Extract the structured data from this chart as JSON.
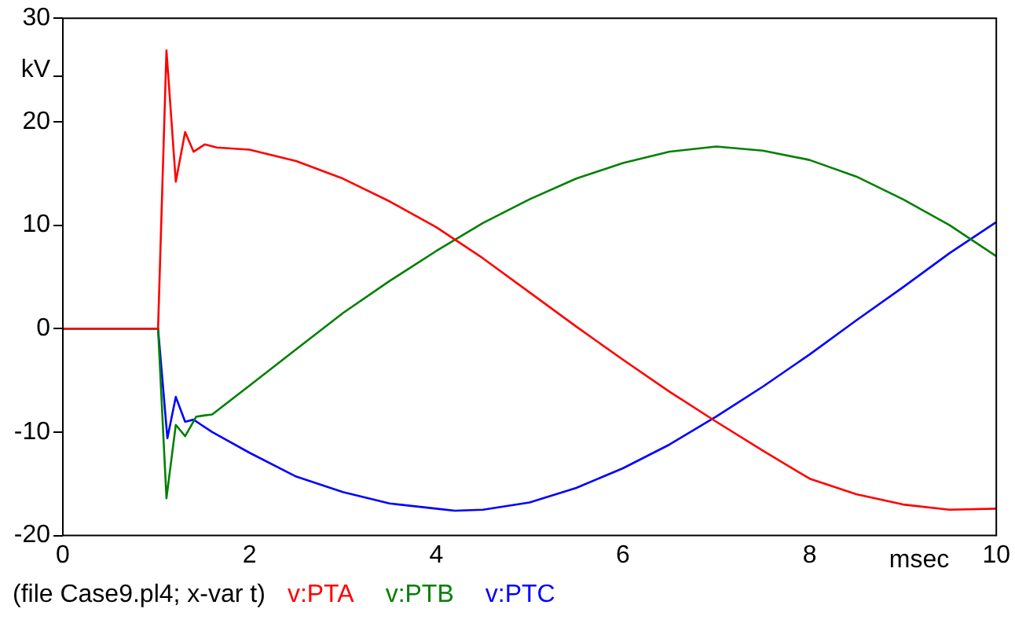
{
  "chart_data": {
    "type": "line",
    "xlabel": "msec",
    "ylabel": "kV",
    "annotations": [
      "(file Case9.pl4; x-var t)"
    ],
    "xlim": [
      0,
      10
    ],
    "ylim": [
      -20,
      30
    ],
    "xticks": [
      0,
      2,
      4,
      6,
      8,
      10
    ],
    "yticks": [
      -20,
      -10,
      0,
      10,
      20,
      30
    ],
    "grid": false,
    "legend": "bottom",
    "marker": "none",
    "line_style": "solid",
    "series": [
      {
        "name": "v:PTA",
        "color": "#ff0000",
        "x": [
          0,
          1.02,
          1.11,
          1.21,
          1.31,
          1.4,
          1.52,
          1.65,
          2,
          2.5,
          3,
          3.5,
          4,
          4.5,
          5,
          5.5,
          6,
          6.5,
          7,
          7.5,
          8,
          8.5,
          9,
          9.5,
          10
        ],
        "values": [
          0,
          0,
          26.9,
          14.2,
          19,
          17.1,
          17.8,
          17.5,
          17.3,
          16.2,
          14.5,
          12.3,
          9.8,
          6.8,
          3.5,
          0.2,
          -3,
          -6.1,
          -9,
          -11.8,
          -14.5,
          -16,
          -17,
          -17.5,
          -17.4
        ]
      },
      {
        "name": "v:PTB",
        "color": "#008000",
        "x": [
          0,
          1.02,
          1.11,
          1.21,
          1.31,
          1.43,
          1.51,
          1.6,
          2,
          2.5,
          3,
          3.5,
          4,
          4.5,
          5,
          5.5,
          6,
          6.5,
          7,
          7.5,
          8,
          8.5,
          9,
          9.5,
          10
        ],
        "values": [
          0,
          0,
          -16.4,
          -9.3,
          -10.4,
          -8.5,
          -8.4,
          -8.3,
          -5.5,
          -2,
          1.5,
          4.6,
          7.5,
          10.2,
          12.5,
          14.5,
          16,
          17.1,
          17.6,
          17.2,
          16.3,
          14.7,
          12.5,
          10,
          7
        ]
      },
      {
        "name": "v:PTC",
        "color": "#0000ff",
        "x": [
          0,
          1.02,
          1.12,
          1.21,
          1.31,
          1.4,
          1.6,
          2,
          2.5,
          3,
          3.5,
          4,
          4.2,
          4.5,
          5,
          5.5,
          6,
          6.5,
          7,
          7.5,
          8,
          8.5,
          9,
          9.5,
          10
        ],
        "values": [
          0,
          0,
          -10.6,
          -6.6,
          -9,
          -8.8,
          -10,
          -12,
          -14.3,
          -15.8,
          -16.9,
          -17.4,
          -17.6,
          -17.5,
          -16.8,
          -15.4,
          -13.5,
          -11.2,
          -8.5,
          -5.6,
          -2.5,
          0.8,
          4,
          7.3,
          10.3
        ]
      }
    ]
  }
}
